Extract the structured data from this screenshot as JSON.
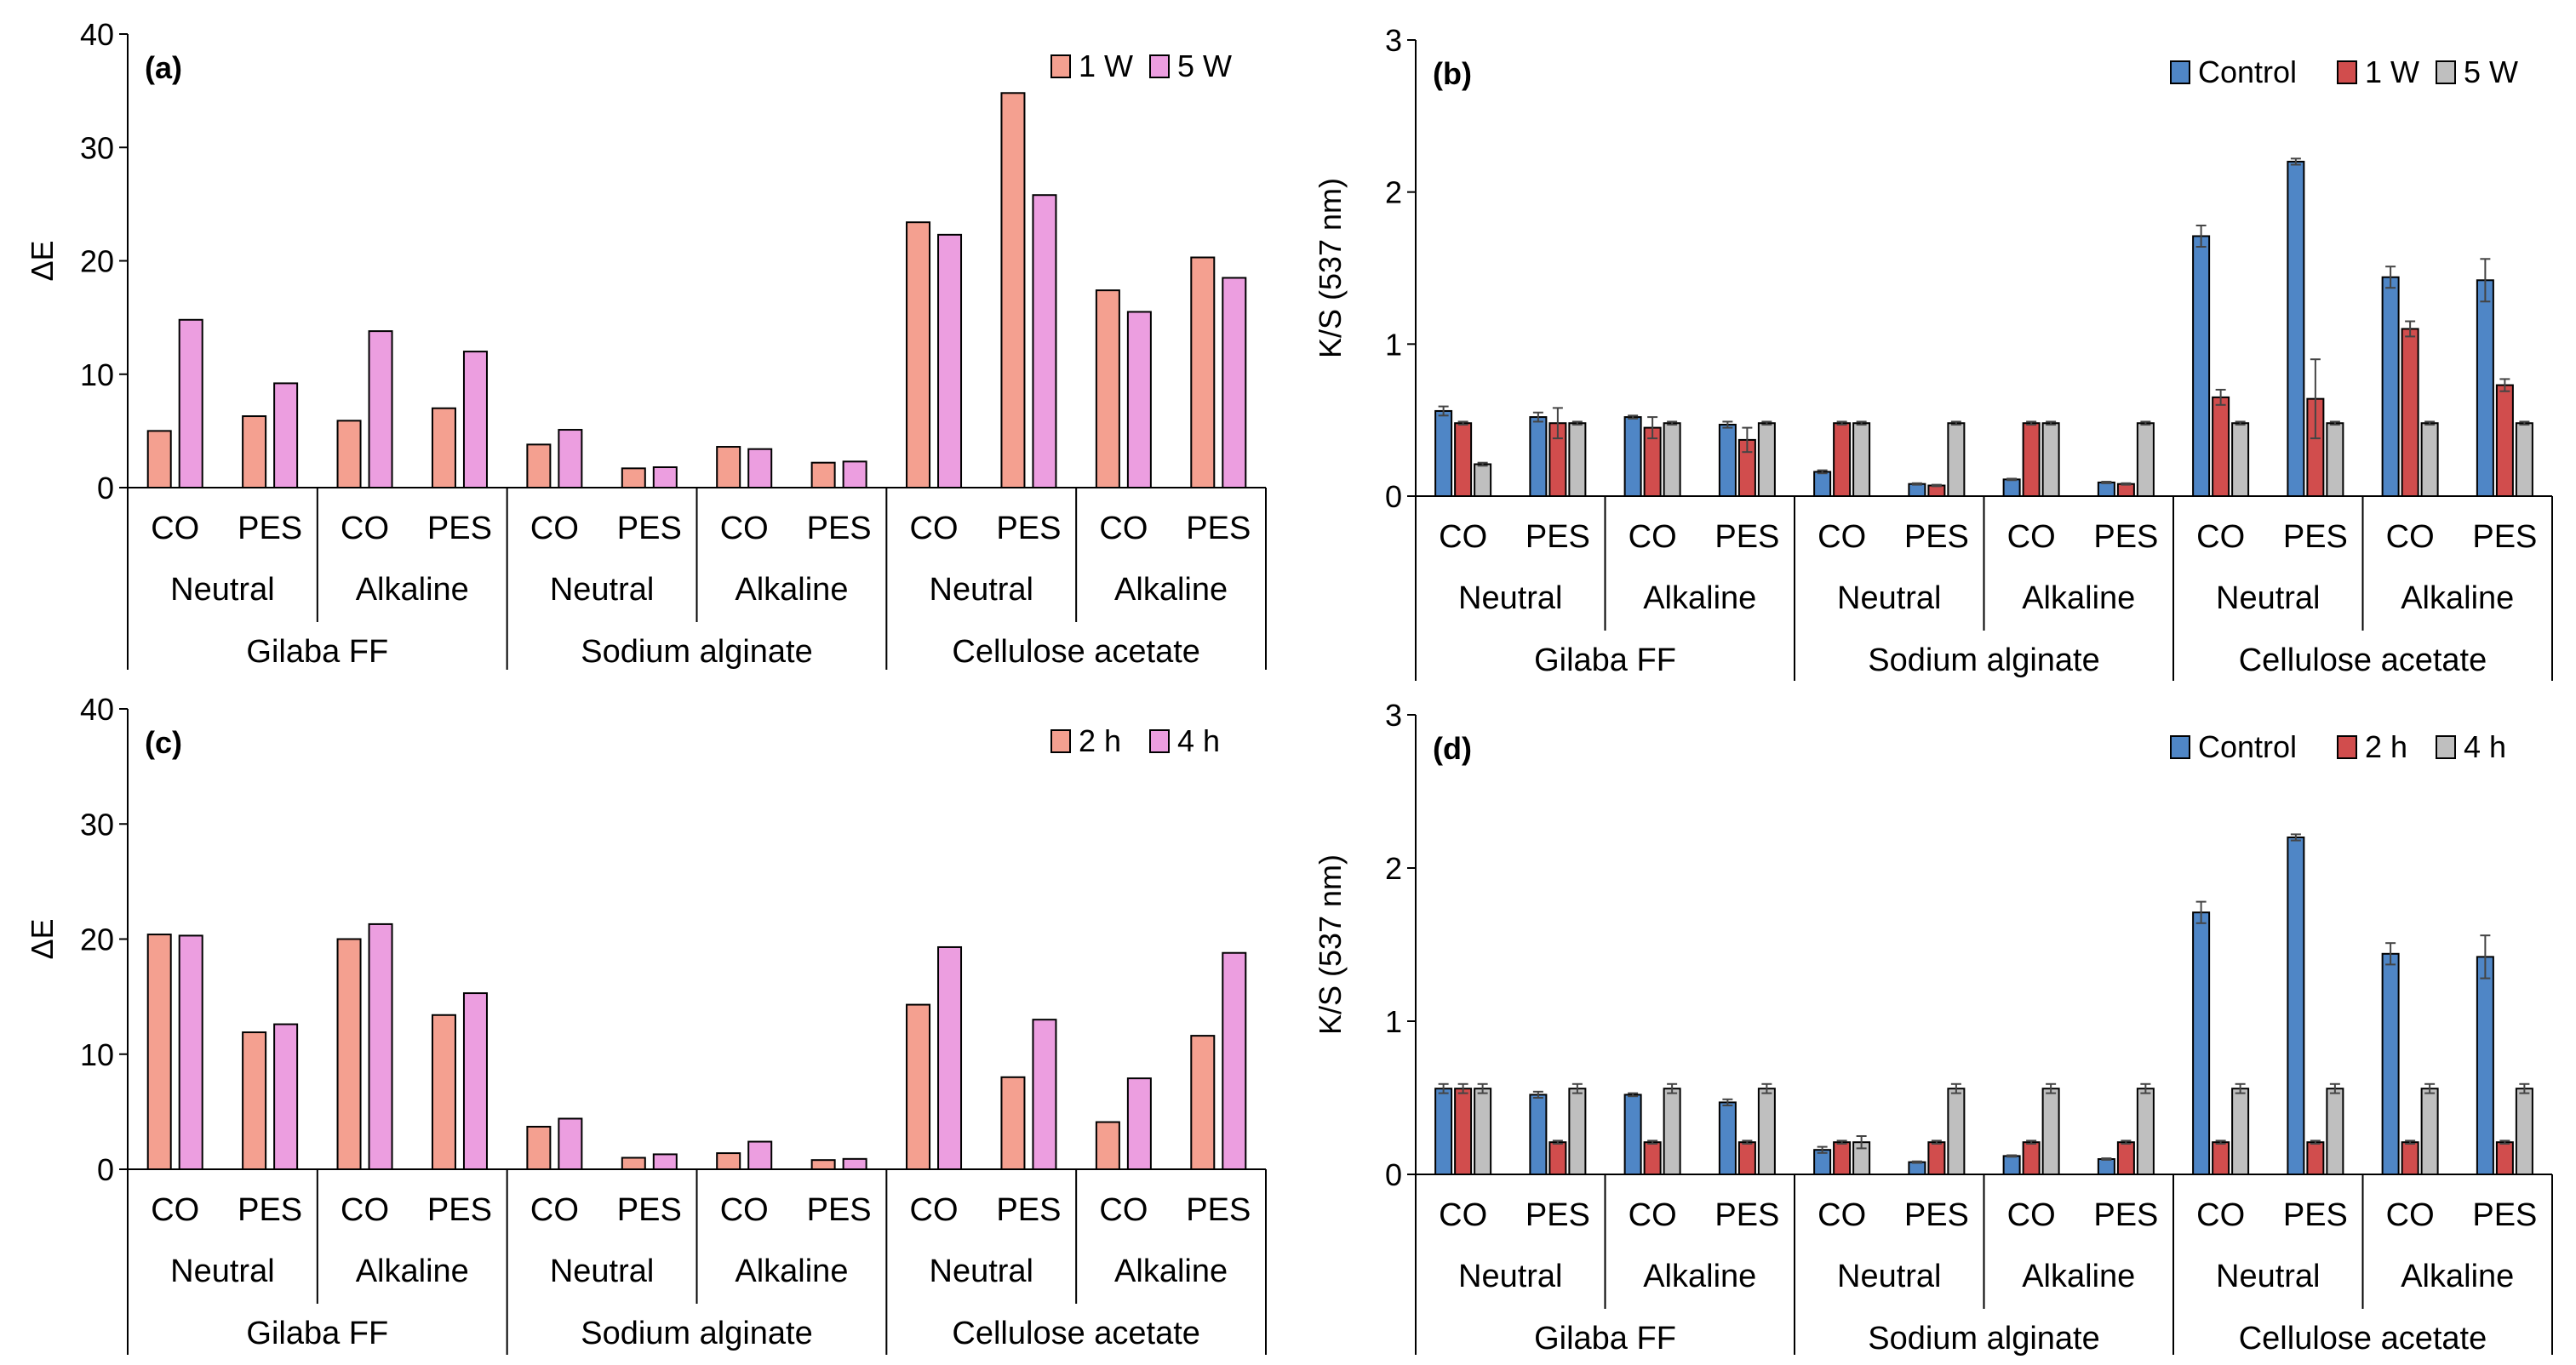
{
  "chart_data": [
    {
      "type": "bar",
      "panel_label": "(a)",
      "ylabel": "ΔE",
      "ylim": [
        0,
        40
      ],
      "yticks": [
        "0",
        "10",
        "20",
        "30",
        "40"
      ],
      "legend_position": "top-right",
      "fabrics": [
        "CO",
        "PES",
        "CO",
        "PES",
        "CO",
        "PES",
        "CO",
        "PES",
        "CO",
        "PES",
        "CO",
        "PES"
      ],
      "conditions": [
        "Neutral",
        "Alkaline",
        "Neutral",
        "Alkaline",
        "Neutral",
        "Alkaline"
      ],
      "thickeners": [
        "Gilaba FF",
        "Sodium alginate",
        "Cellulose acetate"
      ],
      "series": [
        {
          "name": "1 W",
          "color": "#f4a090",
          "values": [
            5.0,
            6.3,
            5.9,
            7.0,
            3.8,
            1.7,
            3.6,
            2.2,
            23.4,
            34.8,
            17.4,
            20.3
          ]
        },
        {
          "name": "5 W",
          "color": "#ec9ee0",
          "values": [
            14.8,
            9.2,
            13.8,
            12.0,
            5.1,
            1.8,
            3.4,
            2.3,
            22.3,
            25.8,
            15.5,
            18.5
          ]
        }
      ]
    },
    {
      "type": "bar",
      "panel_label": "(b)",
      "ylabel": "K/S (537 nm)",
      "ylim": [
        0,
        3
      ],
      "yticks": [
        "0",
        "1",
        "2",
        "3"
      ],
      "legend_position": "top-right",
      "fabrics": [
        "CO",
        "PES",
        "CO",
        "PES",
        "CO",
        "PES",
        "CO",
        "PES",
        "CO",
        "PES",
        "CO",
        "PES"
      ],
      "conditions": [
        "Neutral",
        "Alkaline",
        "Neutral",
        "Alkaline",
        "Neutral",
        "Alkaline"
      ],
      "thickeners": [
        "Gilaba FF",
        "Sodium alginate",
        "Cellulose acetate"
      ],
      "series": [
        {
          "name": "Control",
          "color": "#4f86c6",
          "values": [
            0.56,
            0.52,
            0.52,
            0.47,
            0.16,
            0.08,
            0.11,
            0.09,
            1.71,
            2.2,
            1.44,
            1.42
          ],
          "errors": [
            0.03,
            0.03,
            0.01,
            0.02,
            0.01,
            0.005,
            0.005,
            0.005,
            0.07,
            0.02,
            0.07,
            0.14
          ]
        },
        {
          "name": "1 W",
          "color": "#d14d4d",
          "values": [
            0.48,
            0.48,
            0.45,
            0.37,
            0.48,
            0.07,
            0.48,
            0.08,
            0.65,
            0.64,
            1.1,
            0.73
          ],
          "errors": [
            0.01,
            0.1,
            0.07,
            0.08,
            0.01,
            0.005,
            0.01,
            0.005,
            0.05,
            0.26,
            0.05,
            0.04
          ]
        },
        {
          "name": "5 W",
          "color": "#bfbfbf",
          "values": [
            0.21,
            0.48,
            0.48,
            0.48,
            0.48,
            0.48,
            0.48,
            0.48,
            0.48,
            0.48,
            0.48,
            0.48
          ],
          "errors": [
            0.01,
            0.01,
            0.01,
            0.01,
            0.01,
            0.01,
            0.01,
            0.01,
            0.01,
            0.01,
            0.01,
            0.01
          ]
        }
      ]
    },
    {
      "type": "bar",
      "panel_label": "(c)",
      "ylabel": "ΔE",
      "ylim": [
        0,
        40
      ],
      "yticks": [
        "0",
        "10",
        "20",
        "30",
        "40"
      ],
      "legend_position": "top-right",
      "fabrics": [
        "CO",
        "PES",
        "CO",
        "PES",
        "CO",
        "PES",
        "CO",
        "PES",
        "CO",
        "PES",
        "CO",
        "PES"
      ],
      "conditions": [
        "Neutral",
        "Alkaline",
        "Neutral",
        "Alkaline",
        "Neutral",
        "Alkaline"
      ],
      "thickeners": [
        "Gilaba FF",
        "Sodium alginate",
        "Cellulose acetate"
      ],
      "series": [
        {
          "name": "2 h",
          "color": "#f4a090",
          "values": [
            20.4,
            11.9,
            20.0,
            13.4,
            3.7,
            1.0,
            1.4,
            0.8,
            14.3,
            8.0,
            4.1,
            11.6
          ]
        },
        {
          "name": "4 h",
          "color": "#ec9ee0",
          "values": [
            20.3,
            12.6,
            21.3,
            15.3,
            4.4,
            1.3,
            2.4,
            0.9,
            19.3,
            13.0,
            7.9,
            18.8
          ]
        }
      ]
    },
    {
      "type": "bar",
      "panel_label": "(d)",
      "ylabel": "K/S (537 nm)",
      "ylim": [
        0,
        3
      ],
      "yticks": [
        "0",
        "1",
        "2",
        "3"
      ],
      "legend_position": "top-right",
      "fabrics": [
        "CO",
        "PES",
        "CO",
        "PES",
        "CO",
        "PES",
        "CO",
        "PES",
        "CO",
        "PES",
        "CO",
        "PES"
      ],
      "conditions": [
        "Neutral",
        "Alkaline",
        "Neutral",
        "Alkaline",
        "Neutral",
        "Alkaline"
      ],
      "thickeners": [
        "Gilaba FF",
        "Sodium alginate",
        "Cellulose acetate"
      ],
      "series": [
        {
          "name": "Control",
          "color": "#4f86c6",
          "values": [
            0.56,
            0.52,
            0.52,
            0.47,
            0.16,
            0.08,
            0.12,
            0.1,
            1.71,
            2.2,
            1.44,
            1.42
          ],
          "errors": [
            0.03,
            0.02,
            0.01,
            0.02,
            0.02,
            0.005,
            0.005,
            0.005,
            0.07,
            0.02,
            0.07,
            0.14
          ]
        },
        {
          "name": "2 h",
          "color": "#d14d4d",
          "values": [
            0.56,
            0.21,
            0.21,
            0.21,
            0.21,
            0.21,
            0.21,
            0.21,
            0.21,
            0.21,
            0.21,
            0.21
          ],
          "errors": [
            0.03,
            0.01,
            0.01,
            0.01,
            0.01,
            0.01,
            0.01,
            0.01,
            0.01,
            0.01,
            0.01,
            0.01
          ]
        },
        {
          "name": "4 h",
          "color": "#bfbfbf",
          "values": [
            0.56,
            0.56,
            0.56,
            0.56,
            0.21,
            0.56,
            0.56,
            0.56,
            0.56,
            0.56,
            0.56,
            0.56
          ],
          "errors": [
            0.03,
            0.03,
            0.03,
            0.03,
            0.04,
            0.03,
            0.03,
            0.03,
            0.03,
            0.03,
            0.03,
            0.03
          ]
        }
      ]
    }
  ]
}
